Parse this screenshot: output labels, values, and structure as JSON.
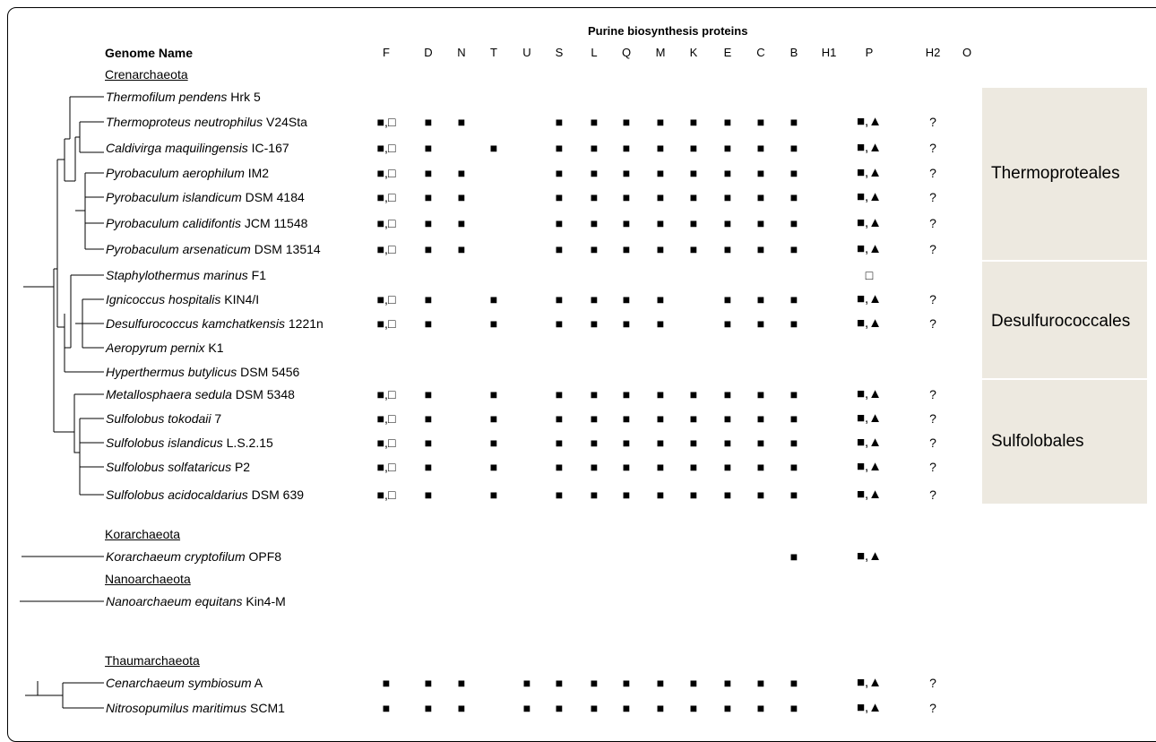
{
  "title": "Purine biosynthesis proteins",
  "genome_header": "Genome Name",
  "columns": [
    "F",
    "D",
    "N",
    "T",
    "U",
    "S",
    "L",
    "Q",
    "M",
    "K",
    "E",
    "C",
    "B",
    "H1",
    "P",
    "H2",
    "O"
  ],
  "symbols": {
    "filled_square": "■",
    "open_square": "□",
    "triangle": "▲",
    "question": "?"
  },
  "phyla": [
    {
      "name": "Crenarchaeota",
      "species": [
        {
          "genus": "Thermofilum pendens",
          "strain": "Hrk 5",
          "marks": {}
        },
        {
          "genus": "Thermoproteus neutrophilus",
          "strain": "V24Sta",
          "marks": {
            "F": "■,□",
            "D": "■",
            "N": "■",
            "S": "■",
            "L": "■",
            "Q": "■",
            "M": "■",
            "K": "■",
            "E": "■",
            "C": "■",
            "B": "■",
            "P": "■,▲",
            "H2": "?"
          }
        },
        {
          "genus": "Caldivirga maquilingensis",
          "strain": "IC-167",
          "marks": {
            "F": "■,□",
            "D": "■",
            "T": "■",
            "S": "■",
            "L": "■",
            "Q": "■",
            "M": "■",
            "K": "■",
            "E": "■",
            "C": "■",
            "B": "■",
            "P": "■,▲",
            "H2": "?"
          }
        },
        {
          "genus": "Pyrobaculum aerophilum",
          "strain": "IM2",
          "marks": {
            "F": "■,□",
            "D": "■",
            "N": "■",
            "S": "■",
            "L": "■",
            "Q": "■",
            "M": "■",
            "K": "■",
            "E": "■",
            "C": "■",
            "B": "■",
            "P": "■,▲",
            "H2": "?"
          }
        },
        {
          "genus": "Pyrobaculum islandicum",
          "strain": "DSM 4184",
          "marks": {
            "F": "■,□",
            "D": "■",
            "N": "■",
            "S": "■",
            "L": "■",
            "Q": "■",
            "M": "■",
            "K": "■",
            "E": "■",
            "C": "■",
            "B": "■",
            "P": "■,▲",
            "H2": "?"
          }
        },
        {
          "genus": "Pyrobaculum calidifontis",
          "strain": "JCM 11548",
          "marks": {
            "F": "■,□",
            "D": "■",
            "N": "■",
            "S": "■",
            "L": "■",
            "Q": "■",
            "M": "■",
            "K": "■",
            "E": "■",
            "C": "■",
            "B": "■",
            "P": "■,▲",
            "H2": "?"
          }
        },
        {
          "genus": "Pyrobaculum arsenaticum",
          "strain": "DSM 13514",
          "marks": {
            "F": "■,□",
            "D": "■",
            "N": "■",
            "S": "■",
            "L": "■",
            "Q": "■",
            "M": "■",
            "K": "■",
            "E": "■",
            "C": "■",
            "B": "■",
            "P": "■,▲",
            "H2": "?"
          }
        },
        {
          "genus": "Staphylothermus marinus",
          "strain": "F1",
          "marks": {
            "P": "□"
          }
        },
        {
          "genus": "Ignicoccus hospitalis",
          "strain": "KIN4/I",
          "marks": {
            "F": "■,□",
            "D": "■",
            "T": "■",
            "S": "■",
            "L": "■",
            "Q": "■",
            "M": "■",
            "E": "■",
            "C": "■",
            "B": "■",
            "P": "■,▲",
            "H2": "?"
          }
        },
        {
          "genus": "Desulfurococcus kamchatkensis",
          "strain": "1221n",
          "marks": {
            "F": "■,□",
            "D": "■",
            "T": "■",
            "S": "■",
            "L": "■",
            "Q": "■",
            "M": "■",
            "E": "■",
            "C": "■",
            "B": "■",
            "P": "■,▲",
            "H2": "?"
          }
        },
        {
          "genus": "Aeropyrum pernix",
          "strain": "K1",
          "marks": {}
        },
        {
          "genus": "Hyperthermus butylicus",
          "strain": "DSM 5456",
          "marks": {}
        },
        {
          "genus": "Metallosphaera sedula",
          "strain": "DSM 5348",
          "marks": {
            "F": "■,□",
            "D": "■",
            "T": "■",
            "S": "■",
            "L": "■",
            "Q": "■",
            "M": "■",
            "K": "■",
            "E": "■",
            "C": "■",
            "B": "■",
            "P": "■,▲",
            "H2": "?"
          }
        },
        {
          "genus": "Sulfolobus tokodaii",
          "strain": "7",
          "marks": {
            "F": "■,□",
            "D": "■",
            "T": "■",
            "S": "■",
            "L": "■",
            "Q": "■",
            "M": "■",
            "K": "■",
            "E": "■",
            "C": "■",
            "B": "■",
            "P": "■,▲",
            "H2": "?"
          }
        },
        {
          "genus": "Sulfolobus islandicus",
          "strain": "L.S.2.15",
          "marks": {
            "F": "■,□",
            "D": "■",
            "T": "■",
            "S": "■",
            "L": "■",
            "Q": "■",
            "M": "■",
            "K": "■",
            "E": "■",
            "C": "■",
            "B": "■",
            "P": "■,▲",
            "H2": "?"
          }
        },
        {
          "genus": "Sulfolobus solfataricus",
          "strain": "P2",
          "marks": {
            "F": "■,□",
            "D": "■",
            "T": "■",
            "S": "■",
            "L": "■",
            "Q": "■",
            "M": "■",
            "K": "■",
            "E": "■",
            "C": "■",
            "B": "■",
            "P": "■,▲",
            "H2": "?"
          }
        },
        {
          "genus": "Sulfolobus acidocaldarius",
          "strain": "DSM 639",
          "marks": {
            "F": "■,□",
            "D": "■",
            "T": "■",
            "S": "■",
            "L": "■",
            "Q": "■",
            "M": "■",
            "K": "■",
            "E": "■",
            "C": "■",
            "B": "■",
            "P": "■,▲",
            "H2": "?"
          }
        }
      ]
    },
    {
      "name": "Korarchaeota",
      "species": [
        {
          "genus": "Korarchaeum cryptofilum",
          "strain": "OPF8",
          "marks": {
            "B": "■",
            "P": "■,▲"
          }
        }
      ]
    },
    {
      "name": "Nanoarchaeota",
      "species": [
        {
          "genus": "Nanoarchaeum equitans",
          "strain": "Kin4-M",
          "marks": {}
        }
      ]
    },
    {
      "name": "Thaumarchaeota",
      "species": [
        {
          "genus": "Cenarchaeum symbiosum",
          "strain": "A",
          "marks": {
            "F": "■",
            "D": "■",
            "N": "■",
            "U": "■",
            "S": "■",
            "L": "■",
            "Q": "■",
            "M": "■",
            "K": "■",
            "E": "■",
            "C": "■",
            "B": "■",
            "P": "■,▲",
            "H2": "?"
          }
        },
        {
          "genus": "Nitrosopumilus maritimus",
          "strain": "SCM1",
          "marks": {
            "F": "■",
            "D": "■",
            "N": "■",
            "U": "■",
            "S": "■",
            "L": "■",
            "Q": "■",
            "M": "■",
            "K": "■",
            "E": "■",
            "C": "■",
            "B": "■",
            "P": "■,▲",
            "H2": "?"
          }
        }
      ]
    }
  ],
  "orders": [
    "Thermoproteales",
    "Desulfurococcales",
    "Sulfolobales"
  ],
  "colors": {
    "band": "#ede9e0",
    "line": "#000000"
  }
}
